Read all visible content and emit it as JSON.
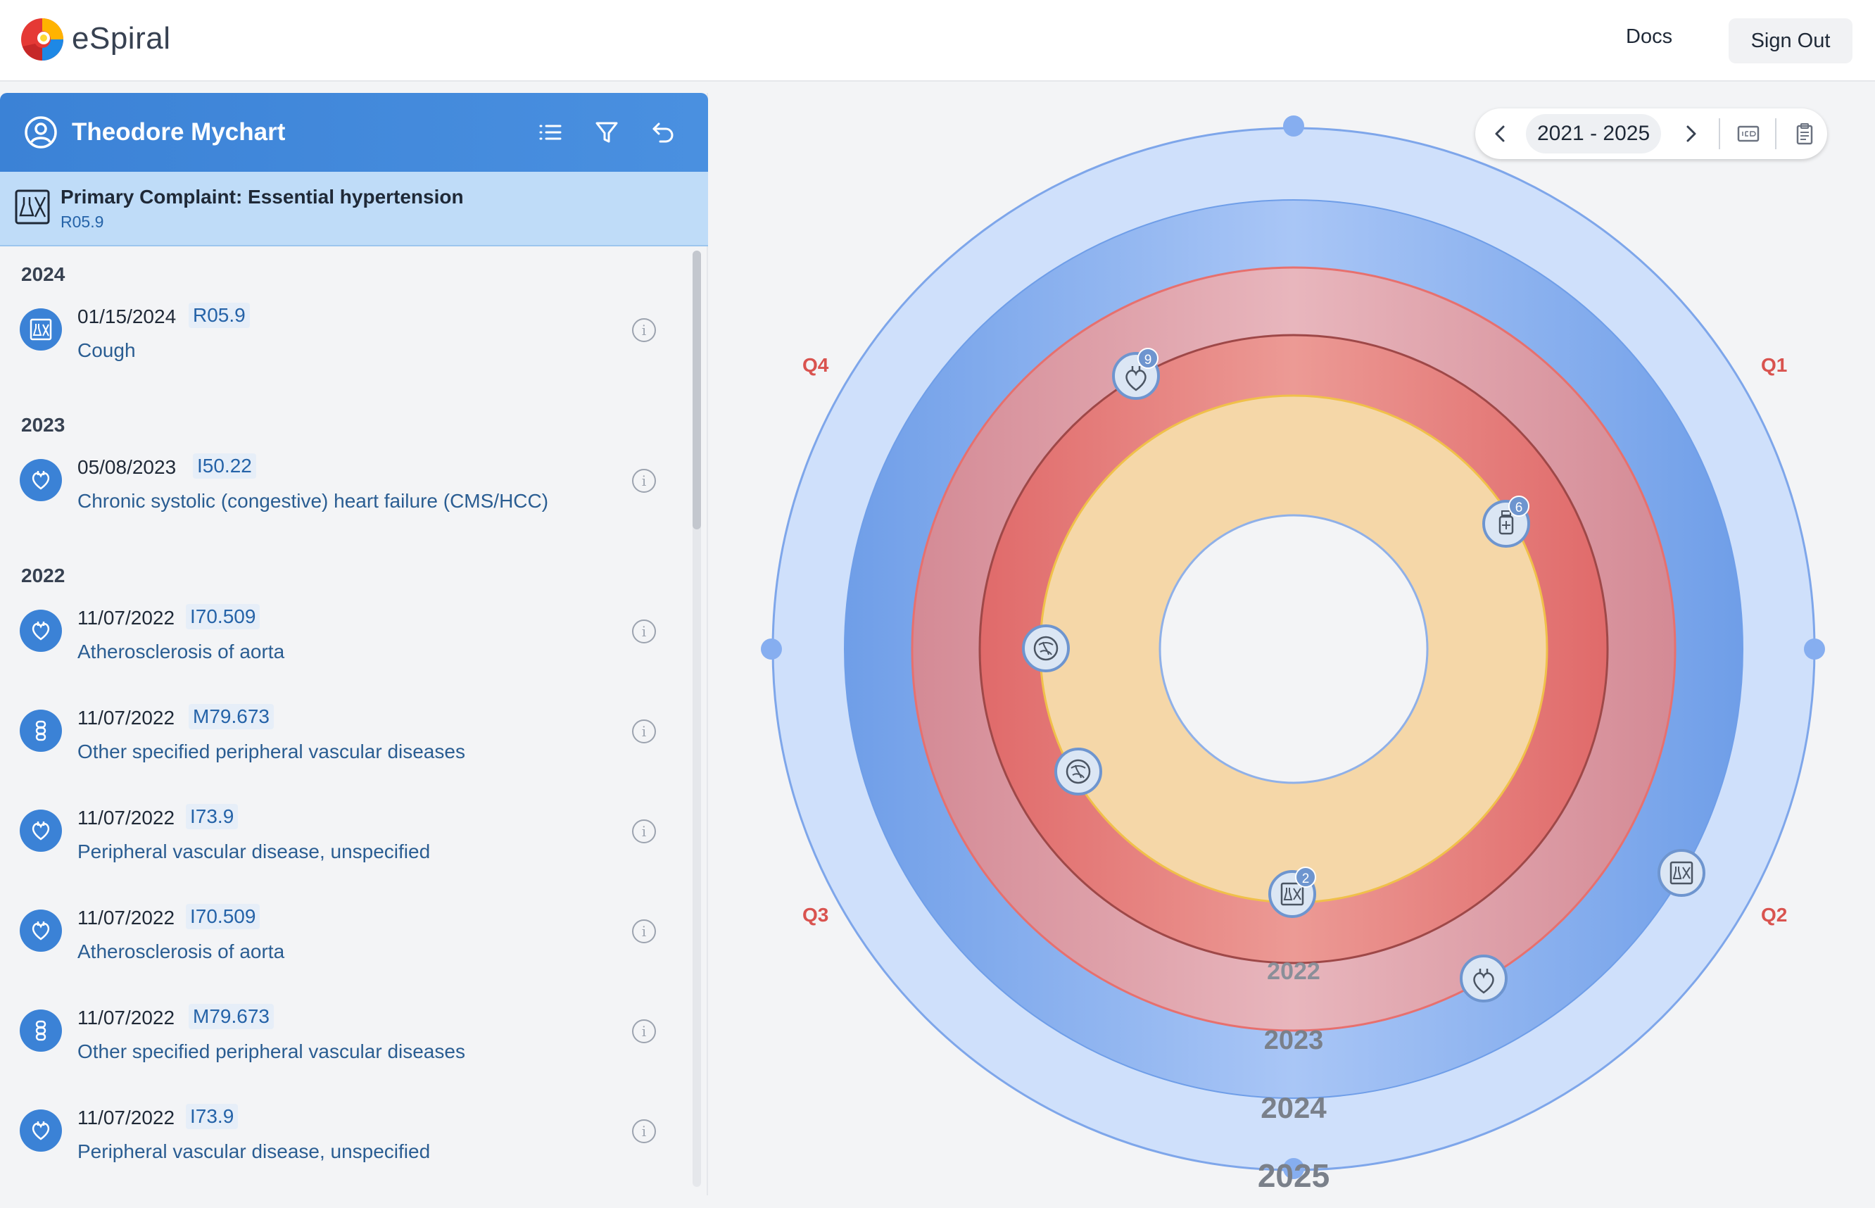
{
  "app": {
    "brand": "eSpiral"
  },
  "topbar": {
    "docs_label": "Docs",
    "signout_label": "Sign Out"
  },
  "patient": {
    "name": "Theodore Mychart",
    "primary_complaint_label": "Primary Complaint: Essential hypertension",
    "primary_complaint_code": "R05.9"
  },
  "history": {
    "years": [
      "2024",
      "2023",
      "2022"
    ],
    "entries": [
      {
        "date": "01/15/2024",
        "code": "R05.9",
        "desc": "Cough",
        "icon": "lab-report-icon"
      },
      {
        "date": "05/08/2023",
        "code": "I50.22",
        "desc": "Chronic systolic (congestive) heart failure (CMS/HCC)",
        "icon": "heart-icon"
      },
      {
        "date": "11/07/2022",
        "code": "I70.509",
        "desc": "Atherosclerosis of aorta",
        "icon": "heart-icon"
      },
      {
        "date": "11/07/2022",
        "code": "M79.673",
        "desc": "Other specified peripheral vascular diseases",
        "icon": "vessel-icon"
      },
      {
        "date": "11/07/2022",
        "code": "I73.9",
        "desc": "Peripheral vascular disease, unspecified",
        "icon": "heart-icon"
      },
      {
        "date": "11/07/2022",
        "code": "I70.509",
        "desc": "Atherosclerosis of aorta",
        "icon": "heart-icon"
      },
      {
        "date": "11/07/2022",
        "code": "M79.673",
        "desc": "Other specified peripheral vascular diseases",
        "icon": "vessel-icon"
      },
      {
        "date": "11/07/2022",
        "code": "I73.9",
        "desc": "Peripheral vascular disease, unspecified",
        "icon": "heart-icon"
      }
    ]
  },
  "spiral": {
    "range_label": "2021 - 2025",
    "quadrants": [
      "Q1",
      "Q2",
      "Q3",
      "Q4"
    ],
    "ring_years": [
      "2022",
      "2023",
      "2024",
      "2025"
    ],
    "markers": [
      {
        "icon": "heart-icon",
        "badge": "9"
      },
      {
        "icon": "medication-icon",
        "badge": "6"
      },
      {
        "icon": "lungs-icon",
        "badge": ""
      },
      {
        "icon": "lungs-icon",
        "badge": ""
      },
      {
        "icon": "lab-report-icon",
        "badge": "2"
      },
      {
        "icon": "lab-report-icon",
        "badge": ""
      },
      {
        "icon": "heart-icon",
        "badge": ""
      }
    ],
    "colors": {
      "outer_blue": "#cfe0fb",
      "mid_blue": "#8fb5f2",
      "pink": "#e1a5ae",
      "red": "#e6807f",
      "peach": "#f5d7a8",
      "quadrant_label": "#d9534f"
    }
  }
}
